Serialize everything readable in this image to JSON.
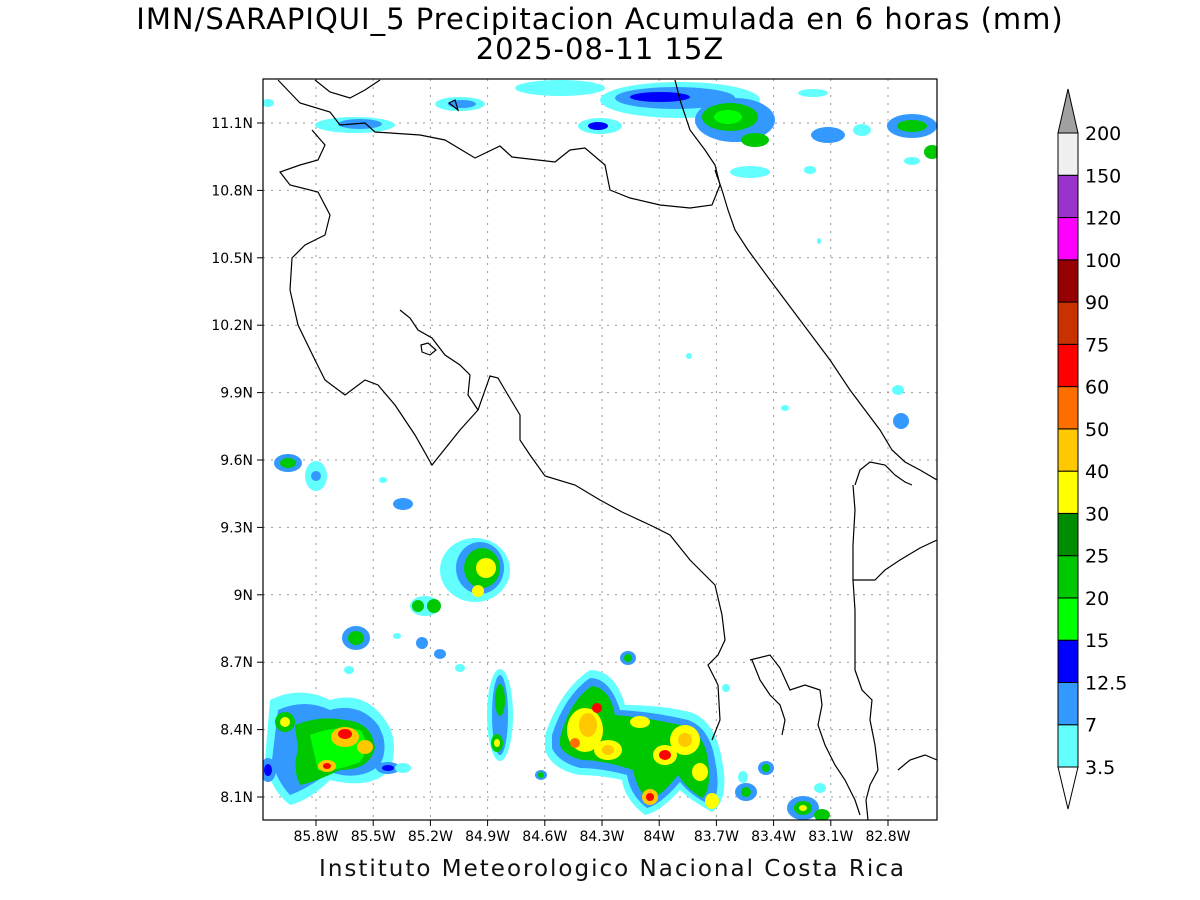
{
  "title_line1": "IMN/SARAPIQUI_5 Precipitacion Acumulada en 6 horas (mm)",
  "title_line2": "2025-08-11 15Z",
  "footer": "Instituto Meteorologico Nacional Costa Rica",
  "map": {
    "lat_ticks": [
      "11.1N",
      "10.8N",
      "10.5N",
      "10.2N",
      "9.9N",
      "9.6N",
      "9.3N",
      "9N",
      "8.7N",
      "8.4N",
      "8.1N"
    ],
    "lon_ticks": [
      "85.8W",
      "85.5W",
      "85.2W",
      "84.9W",
      "84.6W",
      "84.3W",
      "84W",
      "83.7W",
      "83.4W",
      "83.1W",
      "82.8W"
    ],
    "lat_values": [
      11.1,
      10.8,
      10.5,
      10.2,
      9.9,
      9.6,
      9.3,
      9.0,
      8.7,
      8.4,
      8.1
    ],
    "lon_values": [
      -85.8,
      -85.5,
      -85.2,
      -84.9,
      -84.6,
      -84.3,
      -84.0,
      -83.7,
      -83.4,
      -83.1,
      -82.8
    ]
  },
  "legend": {
    "levels": [
      "3.5",
      "7",
      "12.5",
      "15",
      "20",
      "25",
      "30",
      "40",
      "50",
      "60",
      "75",
      "90",
      "100",
      "120",
      "150",
      "200"
    ],
    "colors": [
      "#63ffff",
      "#3399ff",
      "#0000ff",
      "#00ff00",
      "#00c800",
      "#008c00",
      "#ffff00",
      "#ffc800",
      "#ff6e00",
      "#ff0000",
      "#c83200",
      "#960000",
      "#ff00ff",
      "#9933cc",
      "#f0f0f0",
      "#a0a0a0"
    ]
  }
}
